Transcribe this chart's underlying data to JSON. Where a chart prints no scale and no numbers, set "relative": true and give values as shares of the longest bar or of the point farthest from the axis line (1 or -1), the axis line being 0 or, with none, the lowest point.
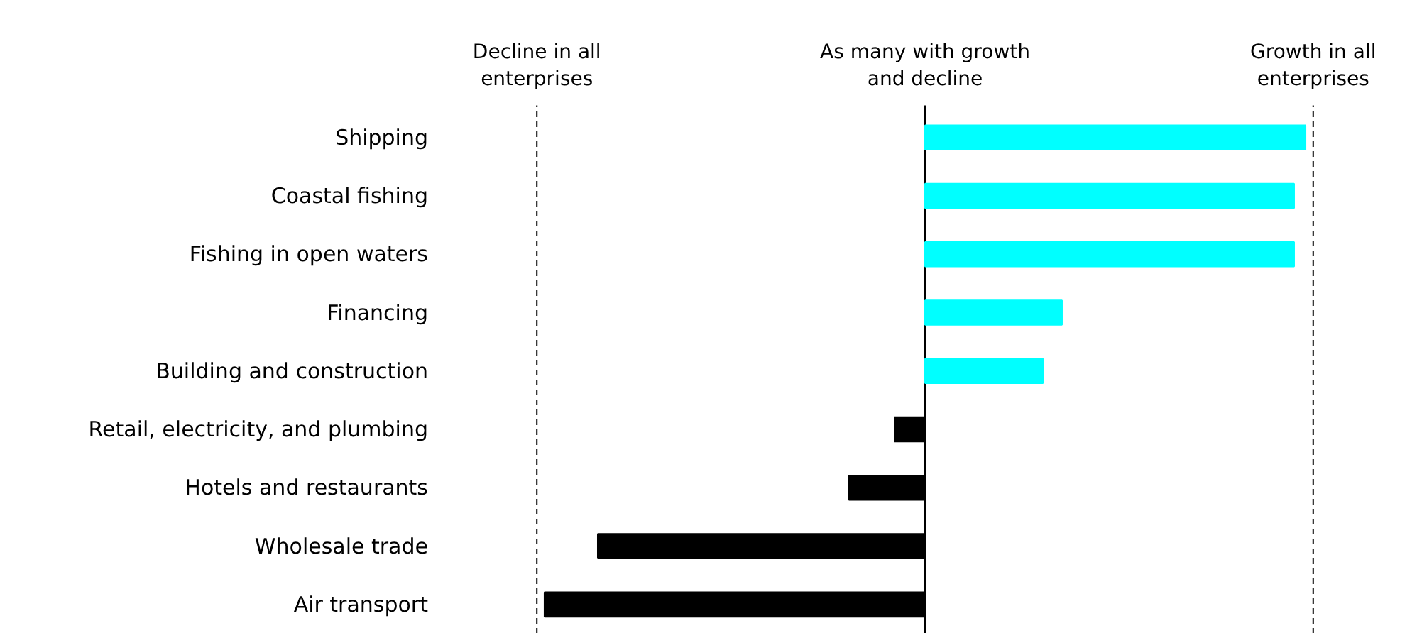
{
  "chart_data": {
    "type": "bar",
    "orientation": "horizontal",
    "relative": true,
    "categories": [
      "Shipping",
      "Coastal fishing",
      "Fishing in open waters",
      "Financing",
      "Building and construction",
      "Retail, electricity, and plumbing",
      "Hotels and restaurants",
      "Wholesale trade",
      "Air transport"
    ],
    "values": [
      1,
      0.97,
      0.97,
      0.36,
      0.31,
      -0.08,
      -0.2,
      -0.86,
      -1
    ],
    "colors": [
      "#00ffff",
      "#00ffff",
      "#00ffff",
      "#00ffff",
      "#00ffff",
      "#000000",
      "#000000",
      "#000000",
      "#000000"
    ],
    "ref_lines": [
      {
        "axis": "x",
        "value": -1.02,
        "label": "Decline in all enterprises",
        "line_style": "dashed",
        "color": "#000000"
      },
      {
        "axis": "x",
        "value": 0,
        "label": "As many with growth and decline",
        "line_style": "solid",
        "color": "#000000"
      },
      {
        "axis": "x",
        "value": 1.02,
        "label": "Growth in all enterprises",
        "line_style": "dashed",
        "color": "#000000"
      }
    ],
    "grid": false
  }
}
